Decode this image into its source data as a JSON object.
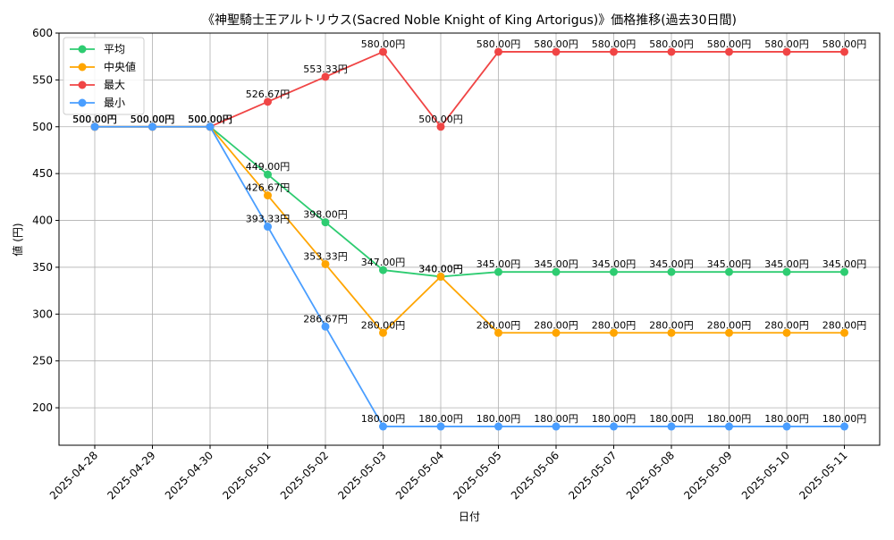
{
  "chart_data": {
    "type": "line",
    "title": "《神聖騎士王アルトリウス(Sacred Noble Knight of King Artorigus)》価格推移(過去30日間)",
    "xlabel": "日付",
    "ylabel": "値 (円)",
    "ylim": [
      160,
      600
    ],
    "yticks": [
      200,
      250,
      300,
      350,
      400,
      450,
      500,
      550,
      600
    ],
    "grid": true,
    "legend_position": "upper-left",
    "categories": [
      "2025-04-28",
      "2025-04-29",
      "2025-04-30",
      "2025-05-01",
      "2025-05-02",
      "2025-05-03",
      "2025-05-04",
      "2025-05-05",
      "2025-05-06",
      "2025-05-07",
      "2025-05-08",
      "2025-05-09",
      "2025-05-10",
      "2025-05-11"
    ],
    "series": [
      {
        "name": "平均",
        "color": "#2ecc71",
        "values": [
          500,
          500,
          500,
          449,
          398,
          347,
          340,
          345,
          345,
          345,
          345,
          345,
          345,
          345
        ],
        "labels": [
          "500.00円",
          "500.00円",
          "500.00円",
          "449.00円",
          "398.00円",
          "347.00円",
          "340.00円",
          "345.00円",
          "345.00円",
          "345.00円",
          "345.00円",
          "345.00円",
          "345.00円",
          "345.00円"
        ]
      },
      {
        "name": "中央値",
        "color": "#ffa500",
        "values": [
          500,
          500,
          500,
          426.67,
          353.33,
          280,
          340,
          280,
          280,
          280,
          280,
          280,
          280,
          280
        ],
        "labels": [
          "500.00円",
          "500.00円",
          "500.00円",
          "426.67円",
          "353.33円",
          "280.00円",
          "340.00円",
          "280.00円",
          "280.00円",
          "280.00円",
          "280.00円",
          "280.00円",
          "280.00円",
          "280.00円"
        ]
      },
      {
        "name": "最大",
        "color": "#f04545",
        "values": [
          500,
          500,
          500,
          526.67,
          553.33,
          580,
          500,
          580,
          580,
          580,
          580,
          580,
          580,
          580
        ],
        "labels": [
          "500.00円",
          "500.00円",
          "500.00円",
          "526.67円",
          "553.33円",
          "580.00円",
          "500.00円",
          "580.00円",
          "580.00円",
          "580.00円",
          "580.00円",
          "580.00円",
          "580.00円",
          "580.00円"
        ]
      },
      {
        "name": "最小",
        "color": "#4a9eff",
        "values": [
          500,
          500,
          500,
          393.33,
          286.67,
          180,
          180,
          180,
          180,
          180,
          180,
          180,
          180,
          180
        ],
        "labels": [
          "500.00円",
          "500.00円",
          "500.00円",
          "393.33円",
          "286.67円",
          "180.00円",
          "180.00円",
          "180.00円",
          "180.00円",
          "180.00円",
          "180.00円",
          "180.00円",
          "180.00円",
          "180.00円"
        ]
      }
    ]
  }
}
